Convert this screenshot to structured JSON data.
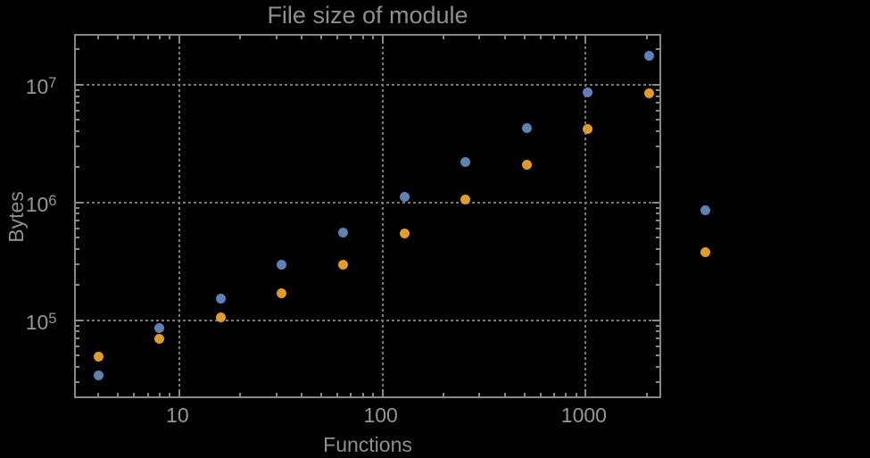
{
  "background_color": "#000000",
  "text_color": "#969696",
  "frame_color": "#878787",
  "grid_color": "#787878",
  "chart_data": {
    "type": "scatter",
    "title": "File size of module",
    "xlabel": "Functions",
    "ylabel": "Bytes",
    "x_scale": "log",
    "y_scale": "log",
    "xlim": [
      3.1,
      2400
    ],
    "ylim": [
      21000,
      26000000
    ],
    "grid": "dotted major decade gridlines",
    "legend_position": "right-outside, markers only (no visible labels)",
    "x_ticks": [
      {
        "value": 10,
        "label": "10"
      },
      {
        "value": 100,
        "label": "100"
      },
      {
        "value": 1000,
        "label": "1000"
      }
    ],
    "y_ticks": [
      {
        "value": 100000,
        "base": "10",
        "exp": "5"
      },
      {
        "value": 1000000,
        "base": "10",
        "exp": "6"
      },
      {
        "value": 10000000,
        "base": "10",
        "exp": "7"
      }
    ],
    "x": [
      4,
      8,
      16,
      32,
      64,
      128,
      256,
      512,
      1024,
      2048
    ],
    "series": [
      {
        "name": "series-1-blue",
        "color": "#5E81B5",
        "values": [
          34000,
          85000,
          152000,
          295000,
          550000,
          1110000,
          2200000,
          4300000,
          8550000,
          17500000
        ]
      },
      {
        "name": "series-2-orange",
        "color": "#E19C24",
        "values": [
          49000,
          70000,
          105000,
          168000,
          295000,
          540000,
          1050000,
          2100000,
          4200000,
          8400000
        ]
      }
    ],
    "legend": {
      "entries": [
        {
          "name": "legend-marker-blue",
          "color": "#5E81B5",
          "label": ""
        },
        {
          "name": "legend-marker-orange",
          "color": "#E19C24",
          "label": ""
        }
      ]
    }
  }
}
